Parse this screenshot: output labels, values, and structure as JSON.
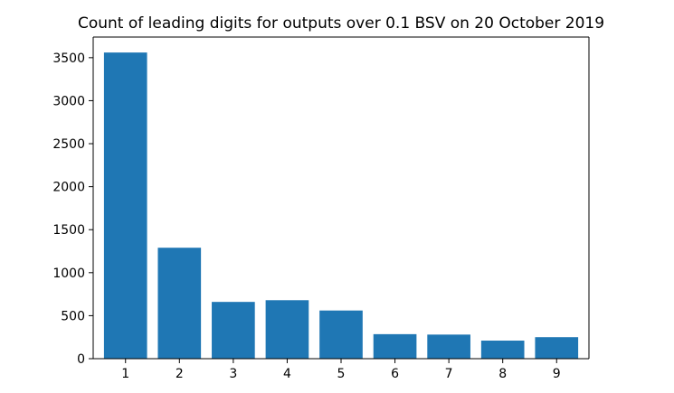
{
  "chart_data": {
    "type": "bar",
    "title": "Count of leading digits for outputs over 0.1 BSV on 20 October 2019",
    "xlabel": "",
    "ylabel": "",
    "categories": [
      "1",
      "2",
      "3",
      "4",
      "5",
      "6",
      "7",
      "8",
      "9"
    ],
    "values": [
      3560,
      1290,
      660,
      680,
      560,
      285,
      280,
      210,
      250
    ],
    "ylim": [
      0,
      3740
    ],
    "yticks": [
      0,
      500,
      1000,
      1500,
      2000,
      2500,
      3000,
      3500
    ],
    "ytick_labels": [
      "0",
      "500",
      "1000",
      "1500",
      "2000",
      "2500",
      "3000",
      "3500"
    ],
    "grid": false,
    "legend": "none",
    "bar_color": "#1f77b4"
  }
}
